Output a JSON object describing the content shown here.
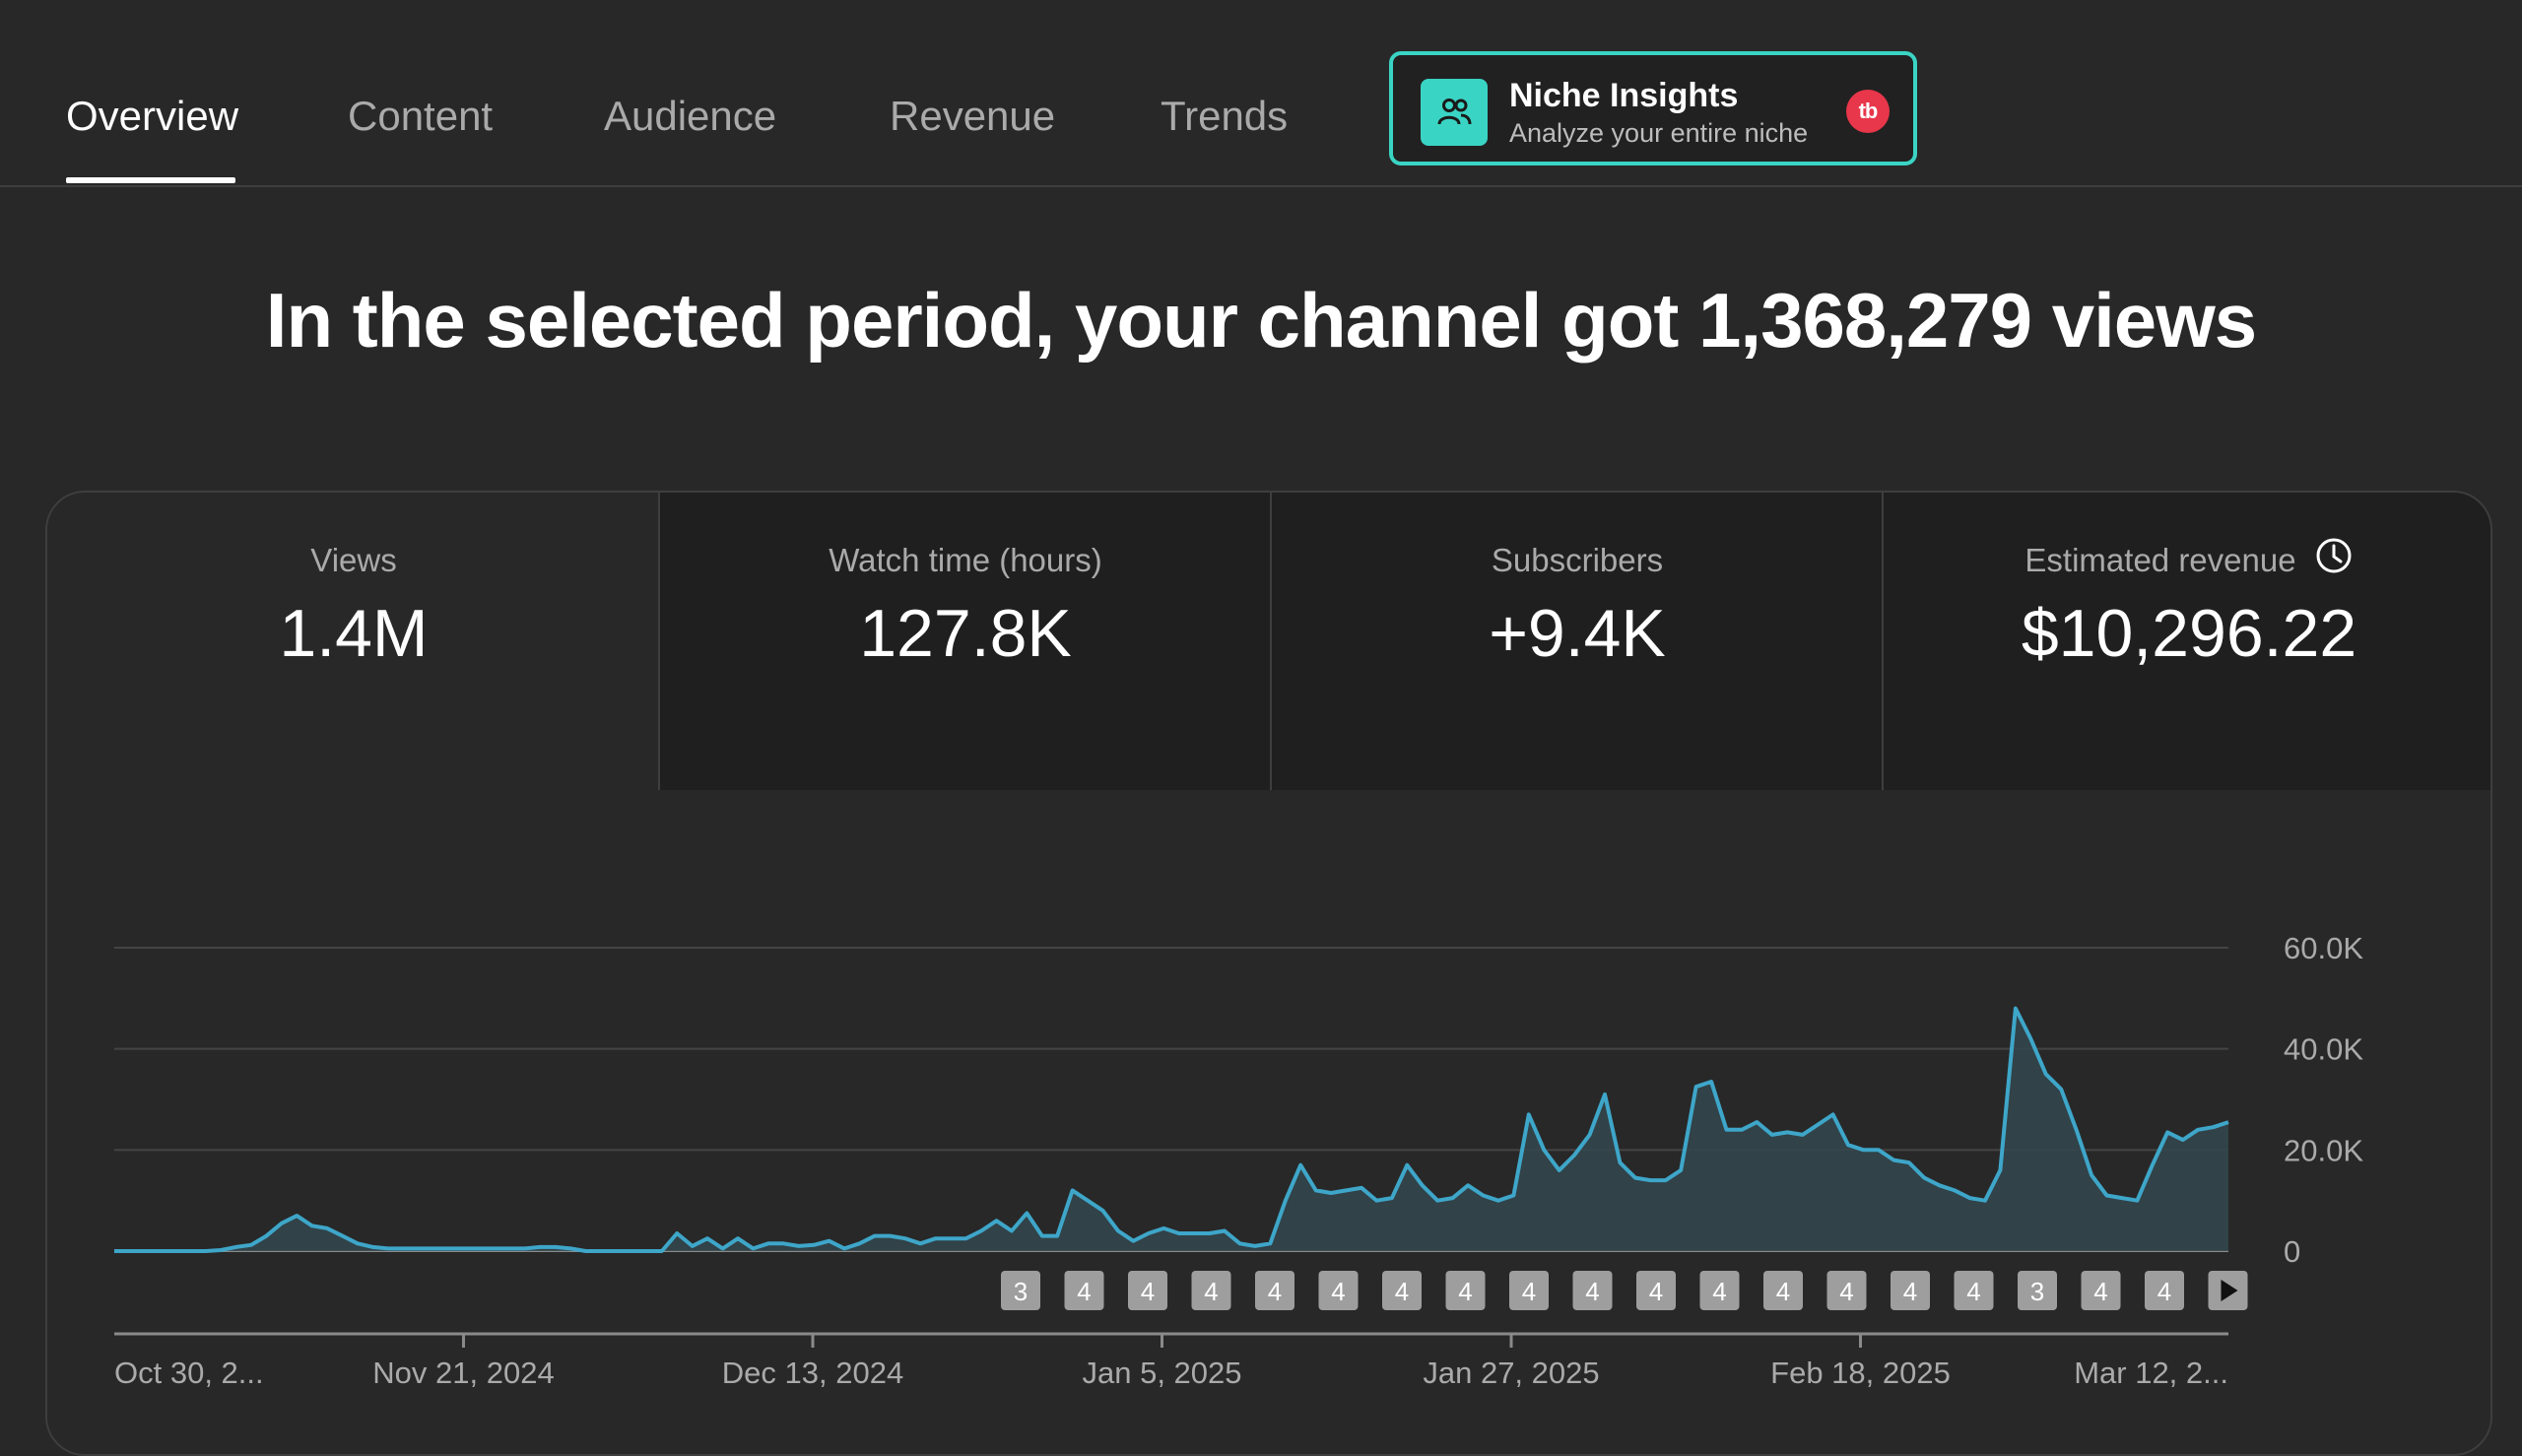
{
  "tabs": [
    {
      "label": "Overview",
      "active": true
    },
    {
      "label": "Content"
    },
    {
      "label": "Audience"
    },
    {
      "label": "Revenue"
    },
    {
      "label": "Trends"
    }
  ],
  "niche": {
    "title": "Niche Insights",
    "subtitle": "Analyze your entire niche",
    "badge": "tb",
    "accent": "#3ad4c4",
    "badge_color": "#e8364a",
    "icon": "users-icon"
  },
  "headline": "In the selected period, your channel got 1,368,279 views",
  "metrics": [
    {
      "label": "Views",
      "value": "1.4M",
      "selected": true
    },
    {
      "label": "Watch time (hours)",
      "value": "127.8K"
    },
    {
      "label": "Subscribers",
      "value": "+9.4K"
    },
    {
      "label": "Estimated revenue",
      "value": "$10,296.22",
      "icon": "clock-icon"
    }
  ],
  "chart_data": {
    "type": "area",
    "series": [
      {
        "color": "#3ea6c9",
        "values": [
          0,
          0,
          0,
          0,
          0,
          0,
          0,
          200,
          800,
          1200,
          3000,
          5500,
          7000,
          5000,
          4500,
          3000,
          1500,
          800,
          500,
          500,
          500,
          500,
          500,
          500,
          500,
          500,
          500,
          500,
          800,
          800,
          500,
          0,
          0,
          0,
          0,
          0,
          0,
          3500,
          1000,
          2500,
          500,
          2500,
          500,
          1500,
          1500,
          1000,
          1200,
          2000,
          500,
          1500,
          3000,
          3000,
          2500,
          1500,
          2500,
          2500,
          2500,
          4000,
          6000,
          4000,
          7500,
          3000,
          3000,
          12000,
          10000,
          8000,
          4000,
          2000,
          3500,
          4500,
          3500,
          3500,
          3500,
          4000,
          1500,
          1000,
          1500,
          10000,
          17000,
          12000,
          11500,
          12000,
          12500,
          10000,
          10500,
          17000,
          13000,
          10000,
          10500,
          13000,
          11000,
          10000,
          11000,
          27000,
          20000,
          16000,
          19000,
          23000,
          31000,
          17500,
          14500,
          14000,
          14000,
          16000,
          32500,
          33500,
          24000,
          24000,
          25500,
          23000,
          23500,
          23000,
          25000,
          27000,
          21000,
          20000,
          20000,
          18000,
          17500,
          14500,
          13000,
          12000,
          10500,
          10000,
          16000,
          48000,
          42000,
          35000,
          32000,
          24000,
          15000,
          11000,
          10500,
          10000,
          17000,
          23500,
          22000,
          24000,
          24500,
          25500
        ]
      }
    ],
    "x_start": "2024-10-30",
    "x_end": "2025-03-16",
    "x_tick_labels": [
      "Oct 30, 2...",
      "Nov 21, 2024",
      "Dec 13, 2024",
      "Jan 5, 2025",
      "Jan 27, 2025",
      "Feb 18, 2025",
      "Mar 12, 2..."
    ],
    "y_tick_labels": [
      "60.0K",
      "40.0K",
      "20.0K",
      "0"
    ],
    "ylim": [
      0,
      60000
    ],
    "y_ticks": [
      60000,
      40000,
      20000,
      0
    ],
    "grid": true,
    "markers": [
      "3",
      "4",
      "4",
      "4",
      "4",
      "4",
      "4",
      "4",
      "4",
      "4",
      "4",
      "4",
      "4",
      "4",
      "4",
      "4",
      "3",
      "4",
      "4"
    ]
  }
}
